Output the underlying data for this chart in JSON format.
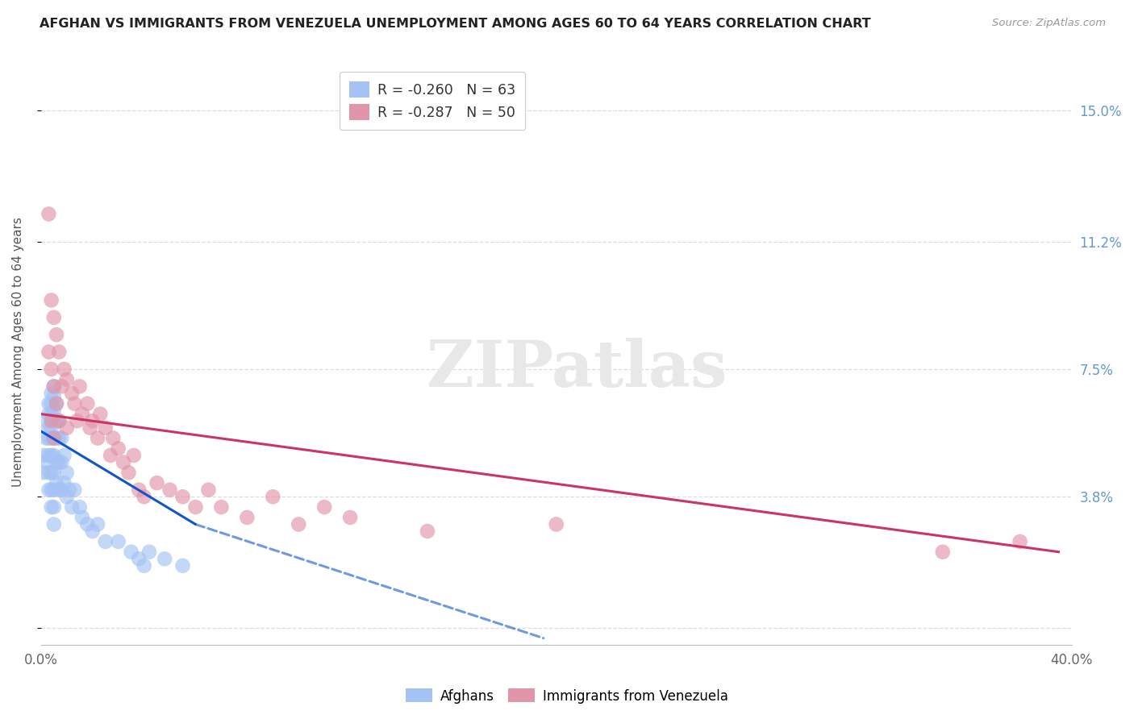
{
  "title": "AFGHAN VS IMMIGRANTS FROM VENEZUELA UNEMPLOYMENT AMONG AGES 60 TO 64 YEARS CORRELATION CHART",
  "source": "Source: ZipAtlas.com",
  "ylabel": "Unemployment Among Ages 60 to 64 years",
  "xlim": [
    0.0,
    0.4
  ],
  "ylim": [
    -0.005,
    0.165
  ],
  "yticks": [
    0.0,
    0.038,
    0.075,
    0.112,
    0.15
  ],
  "ytick_labels": [
    "",
    "3.8%",
    "7.5%",
    "11.2%",
    "15.0%"
  ],
  "xticks": [
    0.0,
    0.1,
    0.2,
    0.3,
    0.4
  ],
  "xtick_labels": [
    "0.0%",
    "",
    "",
    "",
    "40.0%"
  ],
  "afghan_color": "#a4c2f4",
  "venezuela_color": "#e195a8",
  "afghan_line_color": "#1155cc",
  "venezuela_line_color": "#cc3366",
  "background_color": "#ffffff",
  "grid_color": "#dddddd",
  "afghans_x": [
    0.001,
    0.001,
    0.002,
    0.002,
    0.002,
    0.003,
    0.003,
    0.003,
    0.003,
    0.003,
    0.003,
    0.003,
    0.004,
    0.004,
    0.004,
    0.004,
    0.004,
    0.004,
    0.004,
    0.004,
    0.004,
    0.005,
    0.005,
    0.005,
    0.005,
    0.005,
    0.005,
    0.005,
    0.005,
    0.005,
    0.005,
    0.006,
    0.006,
    0.006,
    0.006,
    0.006,
    0.007,
    0.007,
    0.007,
    0.007,
    0.008,
    0.008,
    0.008,
    0.009,
    0.009,
    0.01,
    0.01,
    0.011,
    0.012,
    0.013,
    0.015,
    0.016,
    0.018,
    0.02,
    0.022,
    0.025,
    0.03,
    0.035,
    0.038,
    0.04,
    0.042,
    0.048,
    0.055
  ],
  "afghans_y": [
    0.05,
    0.045,
    0.06,
    0.055,
    0.048,
    0.065,
    0.062,
    0.058,
    0.055,
    0.05,
    0.045,
    0.04,
    0.068,
    0.065,
    0.062,
    0.058,
    0.055,
    0.05,
    0.045,
    0.04,
    0.035,
    0.07,
    0.067,
    0.063,
    0.06,
    0.055,
    0.05,
    0.045,
    0.04,
    0.035,
    0.03,
    0.065,
    0.06,
    0.055,
    0.048,
    0.042,
    0.06,
    0.055,
    0.048,
    0.04,
    0.055,
    0.048,
    0.04,
    0.05,
    0.042,
    0.045,
    0.038,
    0.04,
    0.035,
    0.04,
    0.035,
    0.032,
    0.03,
    0.028,
    0.03,
    0.025,
    0.025,
    0.022,
    0.02,
    0.018,
    0.022,
    0.02,
    0.018
  ],
  "venezuela_x": [
    0.003,
    0.003,
    0.004,
    0.004,
    0.004,
    0.005,
    0.005,
    0.005,
    0.006,
    0.006,
    0.007,
    0.007,
    0.008,
    0.009,
    0.01,
    0.01,
    0.012,
    0.013,
    0.014,
    0.015,
    0.016,
    0.018,
    0.019,
    0.02,
    0.022,
    0.023,
    0.025,
    0.027,
    0.028,
    0.03,
    0.032,
    0.034,
    0.036,
    0.038,
    0.04,
    0.045,
    0.05,
    0.055,
    0.06,
    0.065,
    0.07,
    0.08,
    0.09,
    0.1,
    0.11,
    0.12,
    0.15,
    0.2,
    0.35,
    0.38
  ],
  "venezuela_y": [
    0.08,
    0.12,
    0.095,
    0.075,
    0.06,
    0.09,
    0.07,
    0.055,
    0.085,
    0.065,
    0.08,
    0.06,
    0.07,
    0.075,
    0.072,
    0.058,
    0.068,
    0.065,
    0.06,
    0.07,
    0.062,
    0.065,
    0.058,
    0.06,
    0.055,
    0.062,
    0.058,
    0.05,
    0.055,
    0.052,
    0.048,
    0.045,
    0.05,
    0.04,
    0.038,
    0.042,
    0.04,
    0.038,
    0.035,
    0.04,
    0.035,
    0.032,
    0.038,
    0.03,
    0.035,
    0.032,
    0.028,
    0.03,
    0.022,
    0.025
  ],
  "af_line_x0": 0.0,
  "af_line_y0": 0.057,
  "af_line_x1": 0.06,
  "af_line_y1": 0.03,
  "af_line_x1_dash": 0.195,
  "af_line_y1_dash": -0.003,
  "ven_line_x0": 0.0,
  "ven_line_y0": 0.062,
  "ven_line_x1": 0.395,
  "ven_line_y1": 0.022
}
